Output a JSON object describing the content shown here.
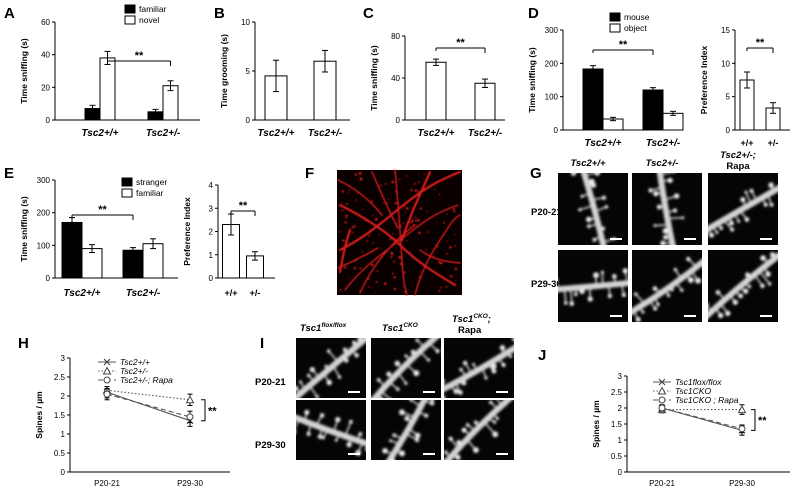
{
  "panels": {
    "A": {
      "label": "A"
    },
    "B": {
      "label": "B"
    },
    "C": {
      "label": "C"
    },
    "D": {
      "label": "D"
    },
    "E": {
      "label": "E"
    },
    "F": {
      "label": "F"
    },
    "G": {
      "label": "G"
    },
    "H": {
      "label": "H"
    },
    "I": {
      "label": "I"
    },
    "J": {
      "label": "J"
    }
  },
  "images": {
    "G": {
      "columns": [
        "Tsc2+/+",
        "Tsc2+/-",
        "Tsc2+/-;",
        "Rapa"
      ],
      "rows": [
        "P20-21",
        "P29-30"
      ]
    },
    "I": {
      "columns": [
        "Tsc1",
        "flox/flox",
        "Tsc1",
        "CKO",
        "Tsc1",
        "CKO",
        ";",
        "Rapa"
      ],
      "rows": [
        "P20-21",
        "P29-30"
      ]
    },
    "F": {
      "color": "#d81e1e"
    }
  },
  "colors": {
    "filled": "#000000",
    "open": "#ffffff"
  },
  "chart_data": [
    {
      "id": "A",
      "type": "bar",
      "categories": [
        "Tsc2+/+",
        "Tsc2+/-"
      ],
      "ylabel": "Time sniffing (s)",
      "ylim": [
        0,
        60
      ],
      "yticks": [
        "0",
        "20",
        "40",
        "60"
      ],
      "series": [
        {
          "name": "familiar",
          "values": [
            7,
            5
          ],
          "errors": [
            2,
            1.5
          ]
        },
        {
          "name": "novel",
          "values": [
            38,
            21
          ],
          "errors": [
            4,
            3
          ]
        }
      ],
      "significance": "**"
    },
    {
      "id": "B",
      "type": "bar",
      "categories": [
        "Tsc2+/+",
        "Tsc2+/-"
      ],
      "ylabel": "Time grooming (s)",
      "ylim": [
        0,
        10
      ],
      "yticks": [
        "0",
        "5",
        "10"
      ],
      "series": [
        {
          "values": [
            4.5,
            6
          ],
          "errors": [
            1.6,
            1.1
          ]
        }
      ]
    },
    {
      "id": "C",
      "type": "bar",
      "categories": [
        "Tsc2+/+",
        "Tsc2+/-"
      ],
      "ylabel": "Time sniffing (s)",
      "ylim": [
        0,
        80
      ],
      "yticks": [
        "0",
        "40",
        "80"
      ],
      "series": [
        {
          "values": [
            55,
            35
          ],
          "errors": [
            3,
            4
          ]
        }
      ],
      "significance": "**"
    },
    {
      "id": "D1",
      "type": "bar",
      "categories": [
        "Tsc2+/+",
        "Tsc2+/-"
      ],
      "ylabel": "Time sniffing (s)",
      "ylim": [
        0,
        300
      ],
      "yticks": [
        "0",
        "100",
        "200",
        "300"
      ],
      "series": [
        {
          "name": "mouse",
          "values": [
            183,
            120
          ],
          "errors": [
            10,
            7
          ]
        },
        {
          "name": "object",
          "values": [
            33,
            50
          ],
          "errors": [
            5,
            6
          ]
        }
      ],
      "significance": "**"
    },
    {
      "id": "D2",
      "type": "bar",
      "categories": [
        "+/+",
        "+/-"
      ],
      "ylabel": "Preference Index",
      "ylim": [
        0,
        15
      ],
      "yticks": [
        "0",
        "5",
        "10",
        "15"
      ],
      "series": [
        {
          "values": [
            7.5,
            3.3
          ],
          "errors": [
            1.2,
            0.8
          ]
        }
      ],
      "significance": "**"
    },
    {
      "id": "E1",
      "type": "bar",
      "categories": [
        "Tsc2+/+",
        "Tsc2+/-"
      ],
      "ylabel": "Time sniffing (s)",
      "ylim": [
        0,
        300
      ],
      "yticks": [
        "0",
        "100",
        "200",
        "300"
      ],
      "series": [
        {
          "name": "stranger",
          "values": [
            170,
            85
          ],
          "errors": [
            15,
            8
          ]
        },
        {
          "name": "familiar",
          "values": [
            90,
            105
          ],
          "errors": [
            12,
            15
          ]
        }
      ],
      "significance": "**"
    },
    {
      "id": "E2",
      "type": "bar",
      "categories": [
        "+/+",
        "+/-"
      ],
      "ylabel": "Preference Index",
      "ylim": [
        0,
        4
      ],
      "yticks": [
        "0",
        "1",
        "2",
        "3",
        "4"
      ],
      "series": [
        {
          "values": [
            2.3,
            0.95
          ],
          "errors": [
            0.45,
            0.18
          ]
        }
      ],
      "significance": "**"
    },
    {
      "id": "H",
      "type": "line",
      "x": [
        "P20-21",
        "P29-30"
      ],
      "ylabel": "Spines / µm",
      "ylim": [
        0,
        3
      ],
      "yticks": [
        "0",
        "0.5",
        "1",
        "1.5",
        "2",
        "2.5",
        "3"
      ],
      "series": [
        {
          "name": "Tsc2+/+",
          "values": [
            2.1,
            1.35
          ],
          "errors": [
            0.15,
            0.15
          ],
          "marker": "x",
          "dash": "solid"
        },
        {
          "name": "Tsc2+/-",
          "values": [
            2.15,
            1.9
          ],
          "errors": [
            0.1,
            0.15
          ],
          "marker": "triangle",
          "dash": "dotted"
        },
        {
          "name": "Tsc2+/-; Rapa",
          "values": [
            2.05,
            1.45
          ],
          "errors": [
            0.15,
            0.15
          ],
          "marker": "circle",
          "dash": "dashed"
        }
      ],
      "significance": "**"
    },
    {
      "id": "J",
      "type": "line",
      "x": [
        "P20-21",
        "P29-30"
      ],
      "ylabel": "Spines / µm",
      "ylim": [
        0,
        3
      ],
      "yticks": [
        "0",
        "0.5",
        "1",
        "1.5",
        "2",
        "2.5",
        "3"
      ],
      "series": [
        {
          "name": "Tsc1flox/flox",
          "values": [
            2.0,
            1.3
          ],
          "errors": [
            0.1,
            0.15
          ],
          "marker": "x",
          "dash": "solid"
        },
        {
          "name": "Tsc1CKO",
          "values": [
            1.95,
            1.95
          ],
          "errors": [
            0.1,
            0.15
          ],
          "marker": "triangle",
          "dash": "dotted"
        },
        {
          "name": "Tsc1CKO ; Rapa",
          "values": [
            2.0,
            1.35
          ],
          "errors": [
            0.1,
            0.12
          ],
          "marker": "circle",
          "dash": "dashed"
        }
      ],
      "significance": "**"
    }
  ]
}
